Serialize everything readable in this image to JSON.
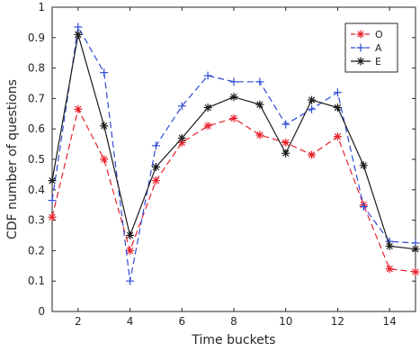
{
  "chart_data": {
    "type": "line",
    "xlabel": "Time buckets",
    "ylabel": "CDF number of questions",
    "xlim": [
      1,
      15
    ],
    "ylim": [
      0,
      1
    ],
    "x_ticks": [
      2,
      4,
      6,
      8,
      10,
      12,
      14
    ],
    "y_ticks": [
      0,
      0.1,
      0.2,
      0.3,
      0.4,
      0.5,
      0.6,
      0.7,
      0.8,
      0.9,
      1
    ],
    "grid": false,
    "legend_position": "top-right",
    "x": [
      1,
      2,
      3,
      4,
      5,
      6,
      7,
      8,
      9,
      10,
      11,
      12,
      13,
      14,
      15
    ],
    "series": [
      {
        "name": "O",
        "color": "#e8212b",
        "line_style": "dashed",
        "marker": "asterisk",
        "values": [
          0.31,
          0.665,
          0.5,
          0.2,
          0.43,
          0.555,
          0.61,
          0.635,
          0.58,
          0.555,
          0.515,
          0.575,
          0.35,
          0.14,
          0.13
        ]
      },
      {
        "name": "A",
        "color": "#2f4bd6",
        "line_style": "dashed",
        "marker": "plus",
        "values": [
          0.365,
          0.935,
          0.785,
          0.1,
          0.545,
          0.675,
          0.775,
          0.755,
          0.755,
          0.615,
          0.665,
          0.72,
          0.345,
          0.23,
          0.225
        ]
      },
      {
        "name": "E",
        "color": "#1a1a1a",
        "line_style": "solid",
        "marker": "asterisk",
        "values": [
          0.43,
          0.91,
          0.61,
          0.25,
          0.475,
          0.57,
          0.67,
          0.705,
          0.68,
          0.52,
          0.695,
          0.67,
          0.48,
          0.215,
          0.205
        ]
      }
    ]
  }
}
